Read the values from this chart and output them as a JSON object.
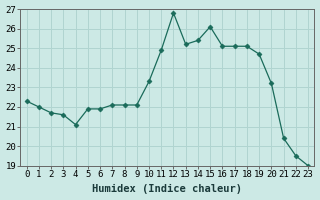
{
  "xlabel": "Humidex (Indice chaleur)",
  "x": [
    0,
    1,
    2,
    3,
    4,
    5,
    6,
    7,
    8,
    9,
    10,
    11,
    12,
    13,
    14,
    15,
    16,
    17,
    18,
    19,
    20,
    21,
    22,
    23
  ],
  "y": [
    22.3,
    22.0,
    21.7,
    21.6,
    21.1,
    21.9,
    21.9,
    22.1,
    22.1,
    22.1,
    23.3,
    24.9,
    26.8,
    25.2,
    25.4,
    26.1,
    25.1,
    25.1,
    25.1,
    24.7,
    23.2,
    20.4,
    19.5,
    19.0
  ],
  "line_color": "#1a6b5a",
  "marker": "D",
  "marker_size": 2.5,
  "background_color": "#cce9e5",
  "grid_color": "#b0d4d0",
  "ylim": [
    19,
    27
  ],
  "xlim": [
    -0.5,
    23.5
  ],
  "yticks": [
    19,
    20,
    21,
    22,
    23,
    24,
    25,
    26,
    27
  ],
  "xtick_labels": [
    "0",
    "1",
    "2",
    "3",
    "4",
    "5",
    "6",
    "7",
    "8",
    "9",
    "10",
    "11",
    "12",
    "13",
    "14",
    "15",
    "16",
    "17",
    "18",
    "19",
    "20",
    "21",
    "22",
    "23"
  ],
  "tick_fontsize": 6.5,
  "label_fontsize": 7.5,
  "label_fontweight": "bold"
}
